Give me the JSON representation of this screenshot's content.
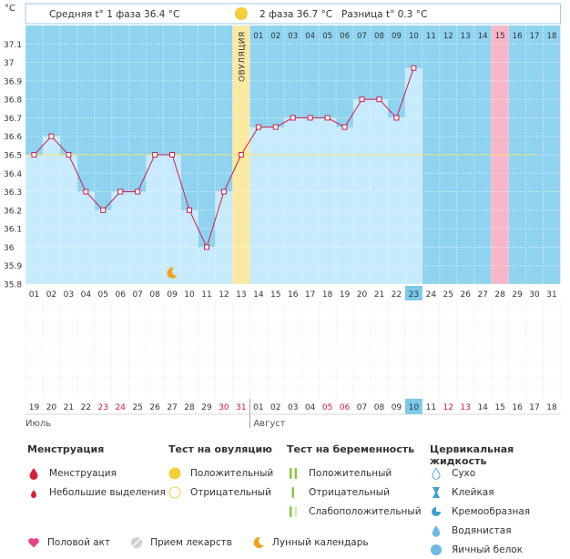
{
  "chart_data": {
    "type": "line",
    "title": "",
    "unit_label": "°C",
    "header": {
      "phase1_text": "Средняя t° 1 фаза 36.4 °C",
      "phase2_text": "2 фаза 36.7 °C",
      "diff_text": "Разница t° 0.3 °C"
    },
    "ovulation_label": "ОВУЛЯЦИЯ",
    "ovulation_day": 13,
    "cover_line": 36.5,
    "ylim": [
      35.8,
      37.2
    ],
    "y_ticks": [
      "37.1",
      "37",
      "36.9",
      "36.8",
      "36.7",
      "36.6",
      "36.5",
      "36.4",
      "36.3",
      "36.2",
      "36.1",
      "36",
      "35.9",
      "35.8"
    ],
    "days": [
      "01",
      "02",
      "03",
      "04",
      "05",
      "06",
      "07",
      "08",
      "09",
      "10",
      "11",
      "12",
      "13",
      "14",
      "15",
      "16",
      "17",
      "18",
      "19",
      "20",
      "21",
      "22",
      "23",
      "24",
      "25",
      "26",
      "27",
      "28",
      "29",
      "30",
      "31"
    ],
    "temperatures": [
      36.5,
      36.6,
      36.5,
      36.3,
      36.2,
      36.3,
      36.3,
      36.5,
      36.5,
      36.2,
      36.0,
      36.3,
      36.5,
      36.65,
      36.65,
      36.7,
      36.7,
      36.7,
      36.65,
      36.8,
      36.8,
      36.7,
      36.97
    ],
    "current_day": "23",
    "post_ovulation_day_numbers": [
      "01",
      "02",
      "03",
      "04",
      "05",
      "06",
      "07",
      "08",
      "09",
      "10",
      "11",
      "12",
      "13",
      "14",
      "15",
      "16",
      "17",
      "18"
    ],
    "highlighted_next_cycle_day": "15",
    "dates": [
      "19",
      "20",
      "21",
      "22",
      "23",
      "24",
      "25",
      "26",
      "27",
      "28",
      "29",
      "30",
      "31",
      "01",
      "02",
      "03",
      "04",
      "05",
      "06",
      "07",
      "08",
      "09",
      "10",
      "11",
      "12",
      "13",
      "14",
      "15",
      "16",
      "17",
      "18"
    ],
    "weekend_dates_idx": [
      4,
      5,
      11,
      12,
      17,
      18,
      24,
      25
    ],
    "current_date": "10",
    "month_left": "Июль",
    "month_right": "Август",
    "moon_day": "09",
    "colors": {
      "sky": "#8fd3f0",
      "bar": "#c7ebfc",
      "line": "#cc1f4c",
      "ovulation": "#fbe9a2",
      "pink": "#f7b6c8",
      "current": "#7dc8e9",
      "weekend": "#d21a3f"
    }
  },
  "legend": {
    "menstruation": {
      "title": "Менструация",
      "items": [
        "Менструация",
        "Небольшие выделения"
      ]
    },
    "ovulation_test": {
      "title": "Тест на овуляцию",
      "items": [
        "Положительный",
        "Отрицательный"
      ]
    },
    "pregnancy_test": {
      "title": "Тест на беременность",
      "items": [
        "Положительный",
        "Отрицательный",
        "Слабоположительный"
      ]
    },
    "cervical": {
      "title": "Цервикальная жидкость",
      "items": [
        "Сухо",
        "Клейкая",
        "Кремообразная",
        "Водянистая",
        "Яичный белок"
      ]
    },
    "bottom": {
      "items": [
        "Половой акт",
        "Прием лекарств",
        "Лунный календарь"
      ]
    }
  }
}
